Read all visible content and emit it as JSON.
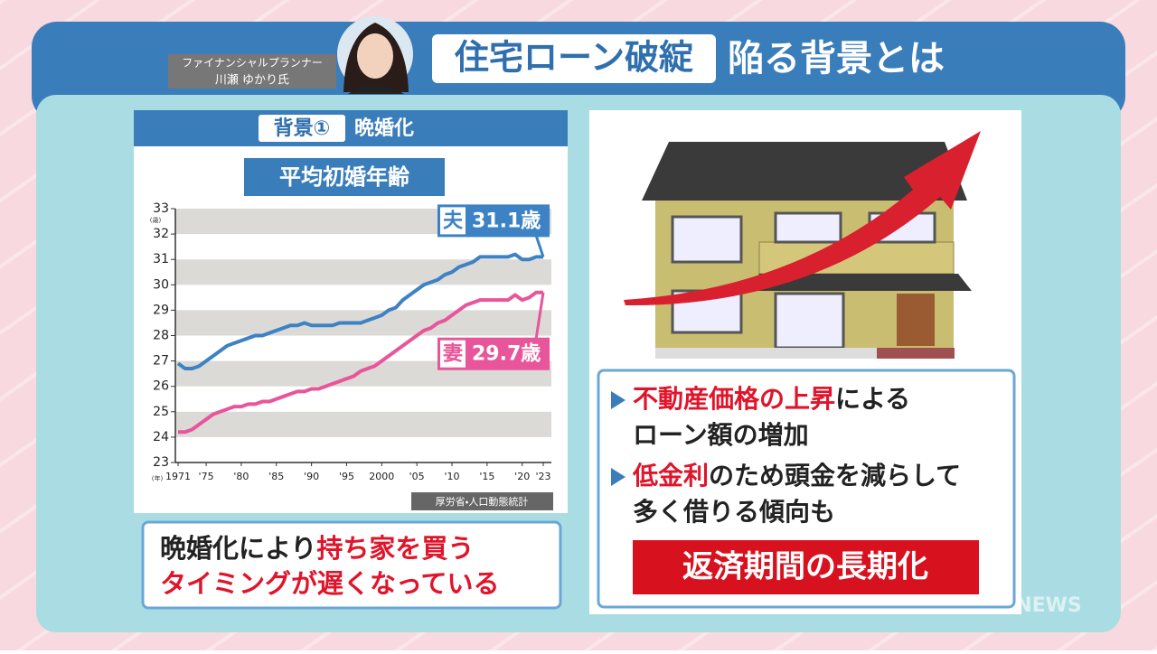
{
  "header": {
    "presenter_role": "ファイナンシャルプランナー",
    "presenter_name": "川瀬 ゆかり氏",
    "title_boxed": "住宅ローン破綻",
    "title_rest": "陥る背景とは"
  },
  "chart_data": {
    "type": "line",
    "heading_boxed": "背景①",
    "heading_rest": "晩婚化",
    "title": "平均初婚年齢",
    "y_unit": "(歳)",
    "x_unit": "(年)",
    "source": "厚労省・人口動態統計",
    "x": [
      1971,
      1972,
      1973,
      1974,
      1975,
      1976,
      1977,
      1978,
      1979,
      1980,
      1981,
      1982,
      1983,
      1984,
      1985,
      1986,
      1987,
      1988,
      1989,
      1990,
      1991,
      1992,
      1993,
      1994,
      1995,
      1996,
      1997,
      1998,
      1999,
      2000,
      2001,
      2002,
      2003,
      2004,
      2005,
      2006,
      2007,
      2008,
      2009,
      2010,
      2011,
      2012,
      2013,
      2014,
      2015,
      2016,
      2017,
      2018,
      2019,
      2020,
      2021,
      2022,
      2023
    ],
    "series": [
      {
        "name": "夫",
        "color": "#3d82c4",
        "values": [
          26.9,
          26.7,
          26.7,
          26.8,
          27.0,
          27.2,
          27.4,
          27.6,
          27.7,
          27.8,
          27.9,
          28.0,
          28.0,
          28.1,
          28.2,
          28.3,
          28.4,
          28.4,
          28.5,
          28.4,
          28.4,
          28.4,
          28.4,
          28.5,
          28.5,
          28.5,
          28.5,
          28.6,
          28.7,
          28.8,
          29.0,
          29.1,
          29.4,
          29.6,
          29.8,
          30.0,
          30.1,
          30.2,
          30.4,
          30.5,
          30.7,
          30.8,
          30.9,
          31.1,
          31.1,
          31.1,
          31.1,
          31.1,
          31.2,
          31.0,
          31.0,
          31.1,
          31.1
        ],
        "value_labels": [
          null,
          null,
          null,
          null,
          null,
          null,
          null,
          null,
          null,
          null,
          null,
          null,
          null,
          null,
          null,
          null,
          null,
          null,
          null,
          null,
          null,
          null,
          null,
          null,
          null,
          null,
          null,
          null,
          null,
          null,
          null,
          null,
          null,
          null,
          null,
          null,
          null,
          null,
          null,
          null,
          null,
          null,
          null,
          null,
          null,
          null,
          null,
          null,
          null,
          null,
          null,
          null,
          "31.1歳"
        ]
      },
      {
        "name": "妻",
        "color": "#e8559a",
        "values": [
          24.2,
          24.2,
          24.3,
          24.5,
          24.7,
          24.9,
          25.0,
          25.1,
          25.2,
          25.2,
          25.3,
          25.3,
          25.4,
          25.4,
          25.5,
          25.6,
          25.7,
          25.8,
          25.8,
          25.9,
          25.9,
          26.0,
          26.1,
          26.2,
          26.3,
          26.4,
          26.6,
          26.7,
          26.8,
          27.0,
          27.2,
          27.4,
          27.6,
          27.8,
          28.0,
          28.2,
          28.3,
          28.5,
          28.6,
          28.8,
          29.0,
          29.2,
          29.3,
          29.4,
          29.4,
          29.4,
          29.4,
          29.4,
          29.6,
          29.4,
          29.5,
          29.7,
          29.7
        ],
        "value_labels": [
          null,
          null,
          null,
          null,
          null,
          null,
          null,
          null,
          null,
          null,
          null,
          null,
          null,
          null,
          null,
          null,
          null,
          null,
          null,
          null,
          null,
          null,
          null,
          null,
          null,
          null,
          null,
          null,
          null,
          null,
          null,
          null,
          null,
          null,
          null,
          null,
          null,
          null,
          null,
          null,
          null,
          null,
          null,
          null,
          null,
          null,
          null,
          null,
          null,
          null,
          null,
          null,
          "29.7歳"
        ]
      }
    ],
    "ylim": [
      23,
      33
    ],
    "yticks": [
      23,
      24,
      25,
      26,
      27,
      28,
      29,
      30,
      31,
      32,
      33
    ],
    "xlim": [
      1971,
      2023
    ],
    "xticks": [
      1971,
      {
        "value": 1975,
        "label": "'75"
      },
      {
        "value": 1980,
        "label": "'80"
      },
      {
        "value": 1985,
        "label": "'85"
      },
      {
        "value": 1990,
        "label": "'90"
      },
      {
        "value": 1995,
        "label": "'95"
      },
      2000,
      {
        "value": 2005,
        "label": "'05"
      },
      {
        "value": 2010,
        "label": "'10"
      },
      {
        "value": 2015,
        "label": "'15"
      },
      {
        "value": 2020,
        "label": "'20"
      },
      {
        "value": 2023,
        "label": "'23"
      }
    ],
    "grid": "bands"
  },
  "caption": {
    "line1": "晩婚化により",
    "line1_highlight": "持ち家を買う",
    "line2": "タイミングが遅くなっている"
  },
  "bullets": [
    {
      "highlight": "不動産価格の上昇",
      "text": "による",
      "continuation": "ローン額の増加"
    },
    {
      "highlight": "低金利",
      "text": "のため頭金を減らして",
      "continuation": "多く借りる傾向も"
    }
  ],
  "conclusion": "返済期間の長期化",
  "logo": "NEWS"
}
